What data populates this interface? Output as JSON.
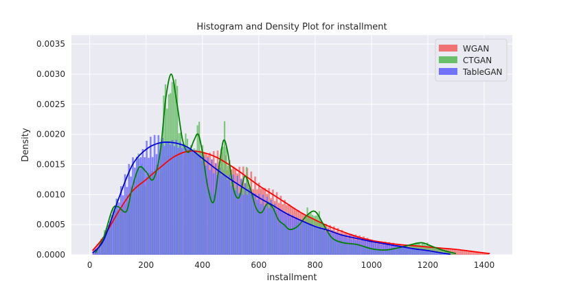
{
  "chart_data": {
    "type": "histogram_density",
    "title": "Histogram and Density Plot for installment",
    "xlabel": "installment",
    "ylabel": "Density",
    "xlim": [
      -65,
      1500
    ],
    "ylim": [
      0,
      0.00365
    ],
    "xticks": [
      0,
      200,
      400,
      600,
      800,
      1000,
      1200,
      1400
    ],
    "yticks": [
      0.0,
      0.0005,
      0.001,
      0.0015,
      0.002,
      0.0025,
      0.003,
      0.0035
    ],
    "ytick_labels": [
      "0.0000",
      "0.0005",
      "0.0010",
      "0.0015",
      "0.0020",
      "0.0025",
      "0.0030",
      "0.0035"
    ],
    "grid": true,
    "legend_position": "top-right",
    "series": [
      {
        "name": "WGAN",
        "color": "#ff0000",
        "fill_color": "#f07272",
        "density_x": [
          10,
          50,
          100,
          150,
          200,
          250,
          300,
          350,
          400,
          450,
          500,
          550,
          600,
          650,
          700,
          750,
          800,
          850,
          900,
          950,
          1000,
          1050,
          1100,
          1150,
          1200,
          1250,
          1300,
          1350,
          1420
        ],
        "density_y": [
          7e-05,
          0.0003,
          0.0007,
          0.00105,
          0.00125,
          0.00145,
          0.00163,
          0.00172,
          0.0017,
          0.00162,
          0.00148,
          0.00132,
          0.00115,
          0.001,
          0.00085,
          0.0007,
          0.00058,
          0.00047,
          0.00038,
          0.0003,
          0.00024,
          0.0002,
          0.00017,
          0.00015,
          0.00013,
          0.00011,
          9e-05,
          6e-05,
          2e-05
        ]
      },
      {
        "name": "CTGAN",
        "color": "#008000",
        "fill_color": "#6abf6a",
        "density_x": [
          20,
          50,
          80,
          100,
          130,
          150,
          175,
          200,
          225,
          250,
          270,
          290,
          310,
          330,
          350,
          370,
          385,
          400,
          420,
          440,
          460,
          475,
          490,
          510,
          530,
          550,
          570,
          590,
          610,
          630,
          650,
          670,
          690,
          710,
          740,
          770,
          800,
          830,
          860,
          900,
          950,
          1000,
          1050,
          1100,
          1150,
          1180,
          1210,
          1250,
          1300
        ],
        "density_y": [
          3e-05,
          0.0003,
          0.00075,
          0.0008,
          0.00072,
          0.0011,
          0.00145,
          0.00138,
          0.00125,
          0.0017,
          0.0026,
          0.003,
          0.0025,
          0.0019,
          0.0017,
          0.0019,
          0.002,
          0.0017,
          0.0011,
          0.00088,
          0.0015,
          0.0019,
          0.0017,
          0.0011,
          0.00095,
          0.0013,
          0.0011,
          0.00078,
          0.0007,
          0.00085,
          0.00078,
          0.00058,
          0.0005,
          0.00042,
          0.00048,
          0.00065,
          0.00072,
          0.0005,
          0.00028,
          0.0002,
          0.00017,
          0.0001,
          8e-05,
          0.00012,
          0.00018,
          0.0002,
          0.00015,
          8e-05,
          2e-05
        ]
      },
      {
        "name": "TableGAN",
        "color": "#0000dd",
        "fill_color": "#7272ff",
        "density_x": [
          10,
          50,
          100,
          150,
          200,
          250,
          300,
          350,
          400,
          450,
          500,
          550,
          600,
          650,
          700,
          750,
          800,
          850,
          900,
          950,
          1000,
          1050,
          1100,
          1150,
          1200,
          1250,
          1280
        ],
        "density_y": [
          3e-05,
          0.00025,
          0.0009,
          0.00148,
          0.00175,
          0.00186,
          0.00186,
          0.00178,
          0.0016,
          0.00142,
          0.00125,
          0.0011,
          0.00095,
          0.00082,
          0.00068,
          0.00057,
          0.00047,
          0.0004,
          0.00032,
          0.00027,
          0.00022,
          0.00018,
          0.00014,
          0.0001,
          7e-05,
          3e-05,
          1e-05
        ]
      }
    ]
  }
}
